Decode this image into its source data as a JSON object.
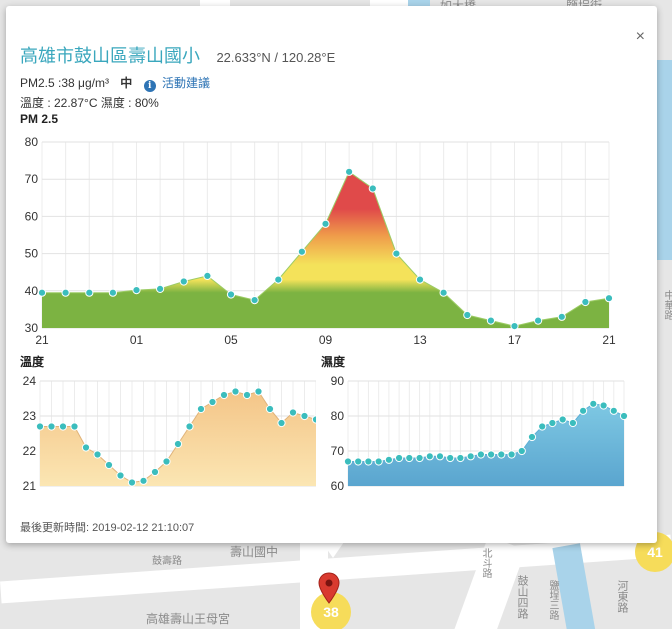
{
  "map": {
    "labels": {
      "bridge": "如大橋",
      "street": "鹽埕街",
      "school": "壽山國中",
      "road1": "鼓壽路",
      "temple": "高雄壽山王母宮",
      "road2": "北斗路",
      "road3": "鼓山四路",
      "road4": "河東路",
      "road5": "中華路",
      "road6": "鹽埕三路"
    },
    "clusters": [
      {
        "value": "38"
      },
      {
        "value": "41"
      }
    ]
  },
  "popup": {
    "close_symbol": "×",
    "site_name": "高雄市鼓山區壽山國小",
    "coords": "22.633°N / 120.28°E",
    "pm_text": "PM2.5 :38 μg/m³",
    "level": "中",
    "info_symbol": "i",
    "advice_link": "活動建議",
    "temp_hum_text": "溫度 : 22.87°C 濕度 : 80%",
    "updated": "最後更新時間: 2019-02-12 21:10:07"
  },
  "pm_chart": {
    "type": "area",
    "title": "PM 2.5",
    "ylim": [
      30,
      80
    ],
    "yticks": [
      30,
      40,
      50,
      60,
      70,
      80
    ],
    "x_tick_labels": [
      "21",
      "01",
      "05",
      "09",
      "13",
      "17",
      "21"
    ],
    "x_tick_index": [
      0,
      4,
      8,
      12,
      16,
      20,
      24
    ],
    "values": [
      39.5,
      39.5,
      39.5,
      39.5,
      40.2,
      40.5,
      42.5,
      44,
      39,
      37.5,
      43,
      50.5,
      58,
      72,
      67.5,
      50,
      43,
      39.5,
      33.5,
      32,
      30.5,
      32,
      33,
      37,
      38
    ],
    "colors": {
      "low": "#7cb342",
      "mid": "#f4e25a",
      "orange": "#ef9a4a",
      "high": "#e04a4a",
      "point": "#3bbdbd"
    }
  },
  "temp_chart": {
    "type": "area",
    "title": "溫度",
    "ylim": [
      21,
      24
    ],
    "yticks": [
      21,
      22,
      23,
      24
    ],
    "values": [
      22.7,
      22.7,
      22.7,
      22.7,
      22.1,
      21.9,
      21.6,
      21.3,
      21.1,
      21.15,
      21.4,
      21.7,
      22.2,
      22.7,
      23.2,
      23.4,
      23.6,
      23.7,
      23.6,
      23.7,
      23.2,
      22.8,
      23.1,
      23.0,
      22.9
    ],
    "colors": {
      "top": "#f4c588",
      "bottom": "#fbe6b3",
      "line": "#e0b37a",
      "point": "#3bbdbd"
    }
  },
  "hum_chart": {
    "type": "area",
    "title": "濕度",
    "ylim": [
      60,
      90
    ],
    "yticks": [
      60,
      70,
      80,
      90
    ],
    "values": [
      67,
      67,
      67,
      67,
      67.5,
      68,
      68,
      68,
      68.5,
      68.5,
      68,
      68,
      68.5,
      69,
      69,
      69,
      69,
      70,
      74,
      77,
      78,
      79,
      78,
      81.5,
      83.5,
      83,
      81.5,
      80
    ],
    "colors": {
      "top": "#7ec8e3",
      "bottom": "#5aa5cf",
      "line": "#5db0d6",
      "point": "#3bbdbd"
    }
  }
}
